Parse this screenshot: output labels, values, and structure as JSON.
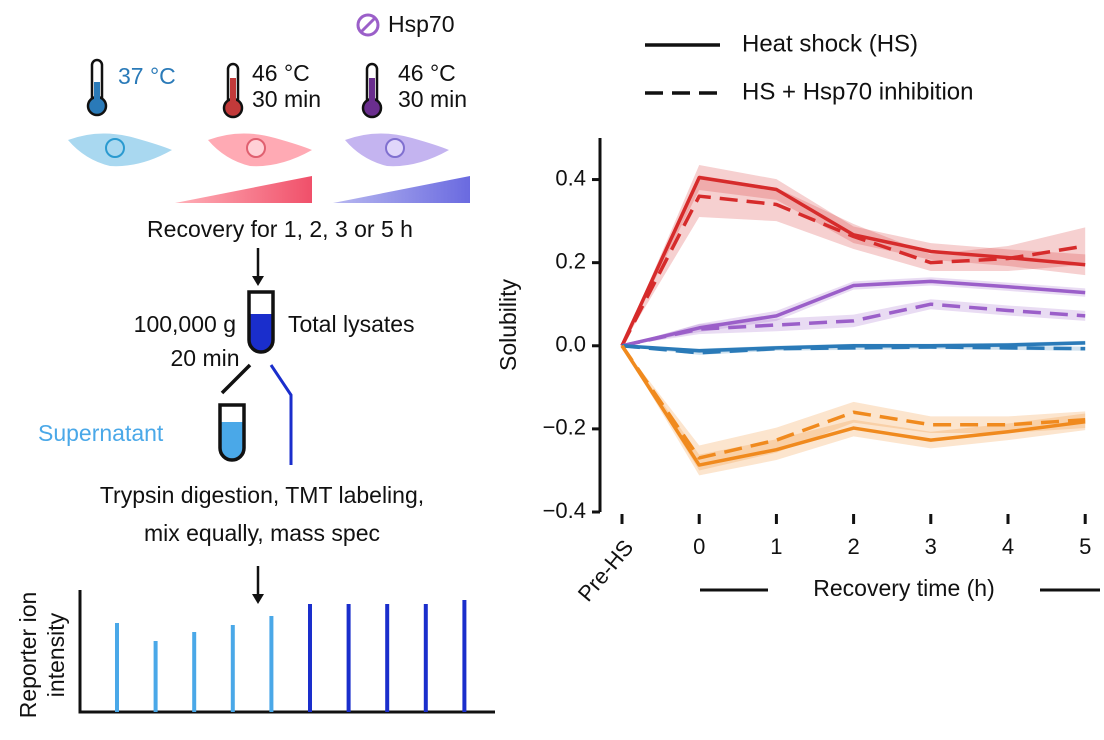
{
  "chart_data": {
    "type": "line",
    "categories": [
      "Pre-HS",
      "0",
      "1",
      "2",
      "3",
      "4",
      "5"
    ],
    "ylabel": "Solubility",
    "xlabel": "Recovery time (h)",
    "ylim": [
      -0.4,
      0.5
    ],
    "yticks": [
      {
        "value": -0.4,
        "label": "−0.4"
      },
      {
        "value": -0.2,
        "label": "−0.2"
      },
      {
        "value": 0,
        "label": "0.0"
      },
      0.2,
      0.4
    ],
    "legend": [
      {
        "label": "Heat shock (HS)",
        "style": "solid"
      },
      {
        "label": "HS + Hsp70 inhibition",
        "style": "dashed"
      }
    ],
    "series": [
      {
        "color": "#d62b2b",
        "style": "solid",
        "values": [
          0,
          0.405,
          0.376,
          0.267,
          0.227,
          0.212,
          0.195
        ],
        "errors": [
          0,
          0.03,
          0.025,
          0.02,
          0.02,
          0.02,
          0.025
        ]
      },
      {
        "color": "#d62b2b",
        "style": "dashed",
        "values": [
          0,
          0.36,
          0.34,
          0.263,
          0.2,
          0.21,
          0.24
        ],
        "errors": [
          0,
          0.05,
          0.04,
          0.03,
          0.02,
          0.03,
          0.045
        ]
      },
      {
        "color": "#9b5fc9",
        "style": "solid",
        "values": [
          0,
          0.043,
          0.072,
          0.145,
          0.155,
          0.142,
          0.128
        ],
        "errors": [
          0,
          0.01,
          0.012,
          0.01,
          0.01,
          0.01,
          0.01
        ]
      },
      {
        "color": "#9b5fc9",
        "style": "dashed",
        "values": [
          0,
          0.04,
          0.05,
          0.06,
          0.1,
          0.085,
          0.072
        ],
        "errors": [
          0,
          0.012,
          0.015,
          0.015,
          0.012,
          0.012,
          0.012
        ]
      },
      {
        "color": "#2a7ab8",
        "style": "solid",
        "values": [
          0,
          -0.012,
          -0.005,
          0,
          0,
          0.002,
          0.007
        ],
        "errors": [
          0,
          0.005,
          0.005,
          0.005,
          0.005,
          0.005,
          0.005
        ]
      },
      {
        "color": "#2a7ab8",
        "style": "dashed",
        "values": [
          0,
          -0.017,
          -0.007,
          -0.005,
          -0.003,
          -0.005,
          -0.007
        ],
        "errors": [
          0,
          0.005,
          0.005,
          0.005,
          0.005,
          0.005,
          0.005
        ]
      },
      {
        "color": "#f08a1e",
        "style": "solid",
        "values": [
          0,
          -0.287,
          -0.25,
          -0.198,
          -0.227,
          -0.207,
          -0.183
        ],
        "errors": [
          0,
          0.025,
          0.025,
          0.02,
          0.02,
          0.02,
          0.02
        ]
      },
      {
        "color": "#f08a1e",
        "style": "dashed",
        "values": [
          0,
          -0.27,
          -0.227,
          -0.16,
          -0.19,
          -0.19,
          -0.178
        ],
        "errors": [
          0,
          0.03,
          0.03,
          0.025,
          0.02,
          0.02,
          0.02
        ]
      }
    ]
  },
  "schematic": {
    "inhibitor": "Hsp70",
    "control_temp": "37 °C",
    "hs_temp": "46 °C",
    "hs_time": "30 min",
    "hs2_temp": "46 °C",
    "hs2_time": "30 min",
    "recovery": "Recovery for 1, 2, 3 or 5 h",
    "spin_force": "100,000 g",
    "spin_time": "20 min",
    "total": "Total lysates",
    "supernatant": "Supernatant",
    "step_1": "Trypsin digestion, TMT labeling,",
    "step_2": "mix equally, mass spec",
    "reporter_label_1": "Reporter ion",
    "reporter_label_2": "intensity",
    "reporter_bars": {
      "values": [
        89,
        71,
        80,
        87,
        96,
        108,
        108,
        108,
        108,
        112
      ],
      "colors": [
        "#4aa8e8",
        "#4aa8e8",
        "#4aa8e8",
        "#4aa8e8",
        "#4aa8e8",
        "#1a2ecc",
        "#1a2ecc",
        "#1a2ecc",
        "#1a2ecc",
        "#1a2ecc"
      ]
    }
  }
}
